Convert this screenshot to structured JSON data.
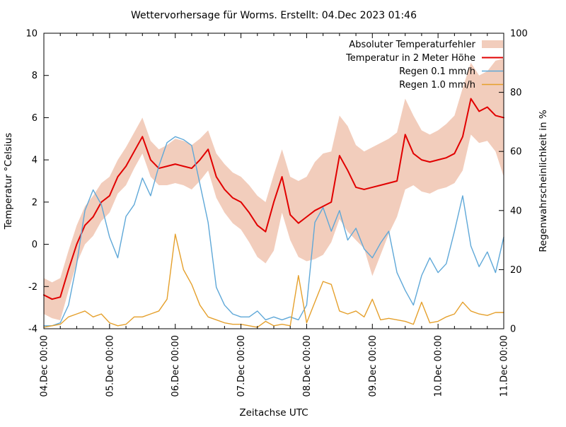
{
  "chart_data": {
    "type": "line",
    "title": "Wettervorhersage für Worms. Erstellt: 04.Dec 2023 01:46",
    "xlabel": "Zeitachse UTC",
    "ylabel_left": "Temperatur °Celsius",
    "ylabel_right": "Regenwahrscheinlichkeit in %",
    "ylim_left": [
      -4,
      10
    ],
    "ylim_right": [
      0,
      100
    ],
    "y_left_ticks": [
      -4,
      -2,
      0,
      2,
      4,
      6,
      8,
      10
    ],
    "y_right_ticks": [
      0,
      20,
      40,
      60,
      80,
      100
    ],
    "x_range_hours": [
      0,
      168
    ],
    "x_major_tick_hours": 24,
    "x_minor_tick_hours": 6,
    "x_tick_labels": [
      "04.Dec 00:00",
      "05.Dec 00:00",
      "06.Dec 00:00",
      "07.Dec 00:00",
      "08.Dec 00:00",
      "09.Dec 00:00",
      "10.Dec 00:00",
      "11.Dec 00:00"
    ],
    "time_step_hours": 3,
    "legend_position": "top-right",
    "grid": false,
    "series": [
      {
        "id": "temperature-error-band",
        "name": "Absoluter Temperaturfehler",
        "type": "band",
        "axis": "left",
        "color": "#f2cdbc",
        "upper": [
          -1.6,
          -1.8,
          -1.6,
          -0.3,
          0.9,
          1.8,
          2.3,
          2.9,
          3.2,
          4.0,
          4.6,
          5.3,
          6.0,
          4.9,
          4.5,
          4.7,
          5.0,
          4.9,
          4.7,
          5.0,
          5.4,
          4.3,
          3.8,
          3.4,
          3.2,
          2.8,
          2.3,
          2.0,
          3.3,
          4.5,
          3.2,
          3.0,
          3.2,
          3.9,
          4.3,
          4.4,
          6.1,
          5.6,
          4.7,
          4.4,
          4.6,
          4.8,
          5.0,
          5.3,
          6.9,
          6.1,
          5.4,
          5.2,
          5.4,
          5.7,
          6.1,
          7.4,
          8.6,
          8.0,
          8.2,
          8.7,
          8.8
        ],
        "lower": [
          -3.3,
          -3.5,
          -3.6,
          -2.2,
          -0.9,
          0.0,
          0.4,
          1.1,
          1.5,
          2.4,
          2.8,
          3.6,
          4.3,
          3.2,
          2.8,
          2.8,
          2.9,
          2.8,
          2.6,
          3.0,
          3.5,
          2.2,
          1.5,
          1.0,
          0.7,
          0.1,
          -0.6,
          -0.9,
          -0.3,
          1.5,
          0.2,
          -0.6,
          -0.8,
          -0.7,
          -0.5,
          0.1,
          1.2,
          0.6,
          0.2,
          -0.2,
          -1.5,
          -0.5,
          0.5,
          1.3,
          2.6,
          2.8,
          2.5,
          2.4,
          2.6,
          2.7,
          2.9,
          3.5,
          5.2,
          4.8,
          4.9,
          4.4,
          3.2
        ]
      },
      {
        "id": "temperature-2m",
        "name": "Temperatur in 2 Meter Höhe",
        "type": "line",
        "axis": "left",
        "color": "#e10000",
        "width": 2,
        "values": [
          -2.4,
          -2.6,
          -2.5,
          -1.2,
          0.0,
          0.9,
          1.3,
          2.0,
          2.3,
          3.2,
          3.7,
          4.4,
          5.1,
          4.0,
          3.6,
          3.7,
          3.8,
          3.7,
          3.6,
          4.0,
          4.5,
          3.2,
          2.6,
          2.2,
          2.0,
          1.5,
          0.9,
          0.6,
          2.0,
          3.2,
          1.4,
          1.0,
          1.3,
          1.6,
          1.8,
          2.0,
          4.2,
          3.5,
          2.7,
          2.6,
          2.7,
          2.8,
          2.9,
          3.0,
          5.2,
          4.3,
          4.0,
          3.9,
          4.0,
          4.1,
          4.3,
          5.1,
          6.9,
          6.3,
          6.5,
          6.1,
          6.0
        ]
      },
      {
        "id": "rain-0-1-mmh",
        "name": "Regen 0.1 mm/h",
        "type": "line",
        "axis": "right",
        "color": "#5fa8d8",
        "width": 1.4,
        "values": [
          1,
          1,
          2,
          8,
          22,
          40,
          47,
          42,
          31,
          24,
          38,
          42,
          51,
          45,
          55,
          63,
          65,
          64,
          62,
          49,
          36,
          14,
          8,
          5,
          4,
          4,
          6,
          3,
          4,
          3,
          4,
          3,
          8,
          36,
          41,
          33,
          40,
          30,
          34,
          27,
          24,
          29,
          33,
          19,
          13,
          8,
          18,
          24,
          19,
          22,
          33,
          45,
          28,
          21,
          26,
          19,
          31
        ]
      },
      {
        "id": "rain-1-0-mmh",
        "name": "Regen 1.0 mm/h",
        "type": "line",
        "axis": "right",
        "color": "#e5a02c",
        "width": 1.4,
        "values": [
          0.5,
          1,
          1.5,
          4,
          5,
          6,
          4,
          5,
          2,
          1,
          1.5,
          4,
          4,
          5,
          6,
          10,
          32,
          20,
          15,
          8,
          4,
          3,
          2,
          1.5,
          1.5,
          1,
          0.5,
          2.5,
          1,
          1.5,
          1,
          18,
          2,
          9,
          16,
          15,
          6,
          5,
          6,
          4,
          10,
          3,
          3.5,
          3,
          2.5,
          1.5,
          9,
          2,
          2.5,
          4,
          5,
          9,
          6,
          5,
          4.5,
          5.5,
          5.5
        ]
      }
    ]
  }
}
